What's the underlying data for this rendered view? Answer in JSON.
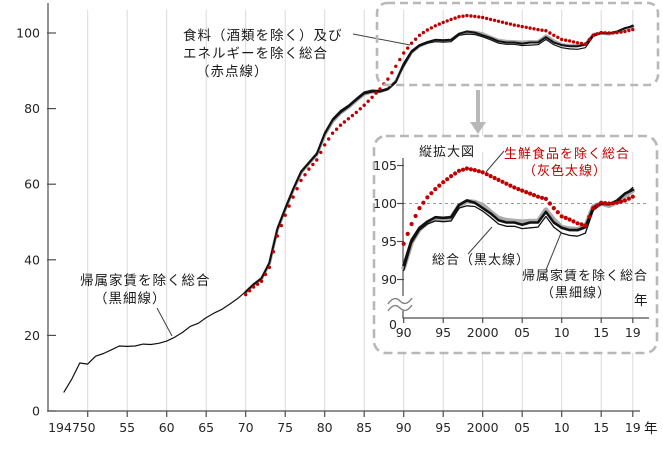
{
  "colors": {
    "red_dot": "#c00000",
    "gray_line": "#ababab",
    "black_line": "#111111",
    "grid": "#d9d9d9",
    "axis": "#4d4d4d",
    "tick_text": "#262626",
    "dash_box": "#b8b8b8",
    "ref_line": "#999999"
  },
  "annotations": {
    "corecore_label": {
      "line1": "食料（酒類を除く）及び",
      "line2": "エネルギーを除く総合",
      "line3": "（赤点線）"
    },
    "kizoku_label": {
      "line1": "帰属家賃を除く総合",
      "line2": "（黒細線）"
    },
    "inset": {
      "title": "縦拡大図",
      "seisen_label": {
        "line1": "生鮮食品を除く総合",
        "line2": "（灰色太線）"
      },
      "sogo_label": "総合（黒太線）",
      "kizoku_label": {
        "line1": "帰属家賃を除く総合",
        "line2": "（黒細線）"
      }
    }
  },
  "chart_data": {
    "type": "line",
    "series": [
      {
        "id": "seisen",
        "name": "生鮮食品を除く総合（灰色太線）",
        "style": "gray-thick",
        "start_year": 1970,
        "values": [
          31.4,
          33.4,
          35.0,
          39.0,
          47.9,
          53.3,
          58.4,
          63.0,
          65.5,
          67.8,
          73.0,
          76.6,
          78.8,
          80.3,
          82.1,
          83.8,
          84.4,
          84.5,
          85.2,
          87.2,
          91.5,
          94.9,
          96.6,
          97.5,
          98.0,
          98.0,
          98.1,
          99.7,
          100.3,
          100.2,
          99.8,
          98.9,
          98.1,
          97.8,
          97.7,
          97.6,
          97.7,
          97.7,
          99.2,
          97.9,
          96.9,
          96.7,
          96.6,
          97.0,
          99.6,
          100.0,
          99.7,
          100.2,
          101.0,
          101.7
        ]
      },
      {
        "id": "sogo",
        "name": "総合（黒太線）",
        "style": "black-thick",
        "start_year": 1970,
        "values": [
          31.5,
          33.5,
          35.1,
          39.2,
          48.1,
          53.5,
          58.6,
          63.2,
          65.6,
          68.0,
          73.3,
          76.9,
          79.0,
          80.5,
          82.3,
          84.0,
          84.5,
          84.5,
          85.1,
          87.0,
          91.9,
          95.2,
          96.8,
          97.6,
          98.2,
          98.1,
          98.2,
          99.8,
          100.4,
          100.1,
          99.4,
          98.7,
          97.8,
          97.5,
          97.5,
          97.2,
          97.5,
          97.5,
          98.9,
          97.5,
          96.8,
          96.5,
          96.5,
          96.9,
          99.5,
          100.0,
          99.9,
          100.4,
          101.3,
          101.8
        ]
      },
      {
        "id": "kizoku",
        "name": "帰属家賃を除く総合（黒細線）",
        "style": "black-thin",
        "start_year": 1947,
        "values": [
          5.0,
          8.5,
          12.7,
          12.4,
          14.5,
          15.2,
          16.2,
          17.2,
          17.1,
          17.2,
          17.7,
          17.6,
          17.9,
          18.5,
          19.5,
          20.8,
          22.4,
          23.2,
          24.7,
          25.9,
          26.9,
          28.3,
          29.8,
          31.6,
          33.6,
          35.2,
          39.3,
          48.4,
          53.8,
          58.9,
          63.5,
          65.9,
          68.3,
          73.7,
          77.3,
          79.5,
          80.9,
          82.7,
          84.4,
          84.9,
          84.8,
          85.4,
          87.3,
          91.2,
          94.8,
          96.5,
          97.3,
          97.7,
          97.6,
          97.7,
          99.4,
          99.7,
          99.6,
          99.0,
          98.2,
          97.3,
          97.0,
          97.0,
          96.7,
          96.8,
          96.9,
          98.3,
          96.9,
          96.1,
          95.8,
          95.7,
          96.1,
          99.1,
          99.9,
          99.8,
          100.2,
          101.2,
          102.1
        ]
      },
      {
        "id": "corecore",
        "name": "食料（酒類を除く）及びエネルギーを除く総合（赤点線）",
        "style": "red-dotted",
        "start_year": 1970,
        "values": [
          30.8,
          32.8,
          34.3,
          38.0,
          46.3,
          51.8,
          56.6,
          61.0,
          64.0,
          66.4,
          70.4,
          73.5,
          75.6,
          77.3,
          79.0,
          80.9,
          83.0,
          85.2,
          87.8,
          91.2,
          94.7,
          97.3,
          99.4,
          100.8,
          101.9,
          102.8,
          103.6,
          104.3,
          104.6,
          104.4,
          104.1,
          103.6,
          103.1,
          102.6,
          102.1,
          101.7,
          101.3,
          100.9,
          100.6,
          99.4,
          98.3,
          97.9,
          97.4,
          97.1,
          99.4,
          100.1,
          100.0,
          100.1,
          100.4,
          100.9
        ]
      }
    ],
    "main_chart": {
      "xlabel": "年",
      "ylim": [
        0,
        105
      ],
      "y_ticks": [
        0,
        20,
        40,
        60,
        80,
        100
      ],
      "x_ticks": [
        {
          "label": "1947",
          "year": 1947
        },
        {
          "label": "50",
          "year": 1950
        },
        {
          "label": "55",
          "year": 1955
        },
        {
          "label": "60",
          "year": 1960
        },
        {
          "label": "65",
          "year": 1965
        },
        {
          "label": "70",
          "year": 1970
        },
        {
          "label": "75",
          "year": 1975
        },
        {
          "label": "80",
          "year": 1980
        },
        {
          "label": "85",
          "year": 1985
        },
        {
          "label": "90",
          "year": 1990
        },
        {
          "label": "95",
          "year": 1995
        },
        {
          "label": "2000",
          "year": 2000
        },
        {
          "label": "05",
          "year": 2005
        },
        {
          "label": "10",
          "year": 2010
        },
        {
          "label": "15",
          "year": 2015
        },
        {
          "label": "19",
          "year": 2019
        }
      ]
    },
    "inset_chart": {
      "title": "縦拡大図",
      "xlabel": "年",
      "x_range": [
        1990,
        2019
      ],
      "ylim_display": [
        90,
        106
      ],
      "reference_line": 100,
      "y_ticks": [
        90,
        95,
        100,
        105
      ],
      "zero_label": "0",
      "x_ticks": [
        {
          "label": "90",
          "year": 1990
        },
        {
          "label": "95",
          "year": 1995
        },
        {
          "label": "2000",
          "year": 2000
        },
        {
          "label": "05",
          "year": 2005
        },
        {
          "label": "10",
          "year": 2010
        },
        {
          "label": "15",
          "year": 2015
        },
        {
          "label": "19",
          "year": 2019
        }
      ]
    }
  }
}
